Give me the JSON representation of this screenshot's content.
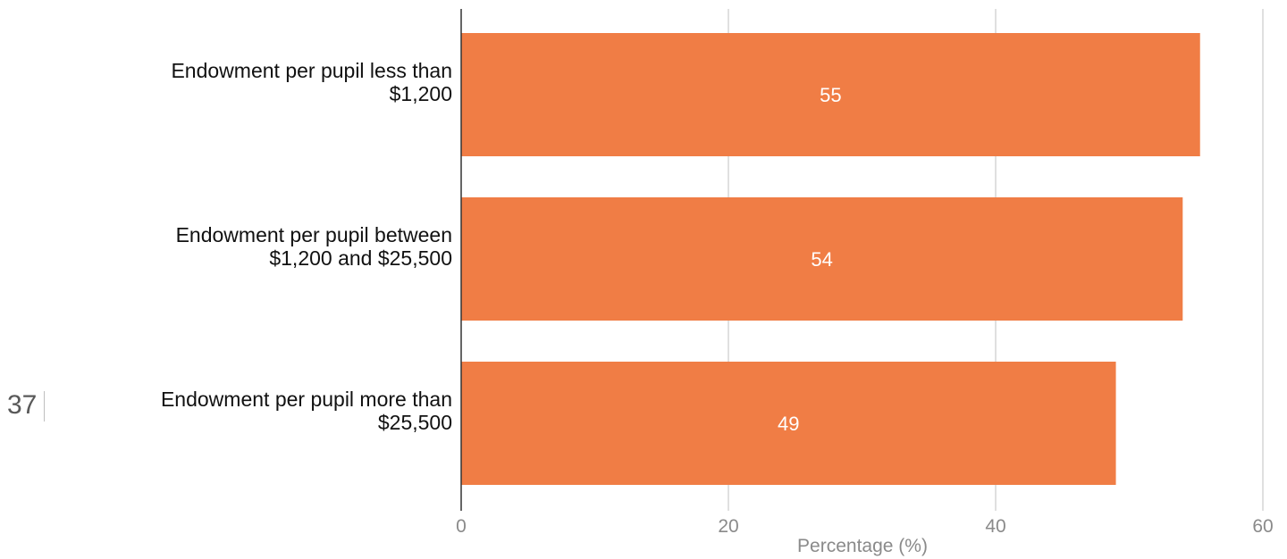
{
  "page": {
    "number": "37"
  },
  "chart_data": {
    "type": "bar",
    "orientation": "horizontal",
    "categories": [
      [
        "Endowment per pupil less than",
        "$1,200"
      ],
      [
        "Endowment per pupil between",
        "$1,200 and $25,500"
      ],
      [
        "Endowment per pupil more than",
        "$25,500"
      ]
    ],
    "values": [
      55.3,
      54.0,
      49.0
    ],
    "data_labels": [
      "55",
      "54",
      "49"
    ],
    "title": "",
    "xlabel": "Percentage (%)",
    "ylabel": "",
    "xlim": [
      0,
      60
    ],
    "xticks": [
      0,
      20,
      40,
      60
    ],
    "xtick_labels": [
      "0",
      "20",
      "40",
      "60"
    ],
    "grid": "vertical",
    "legend": "none",
    "colors": {
      "bar": "#f07d45",
      "gridline": "#d6d6d6",
      "axis": "#333333"
    }
  }
}
